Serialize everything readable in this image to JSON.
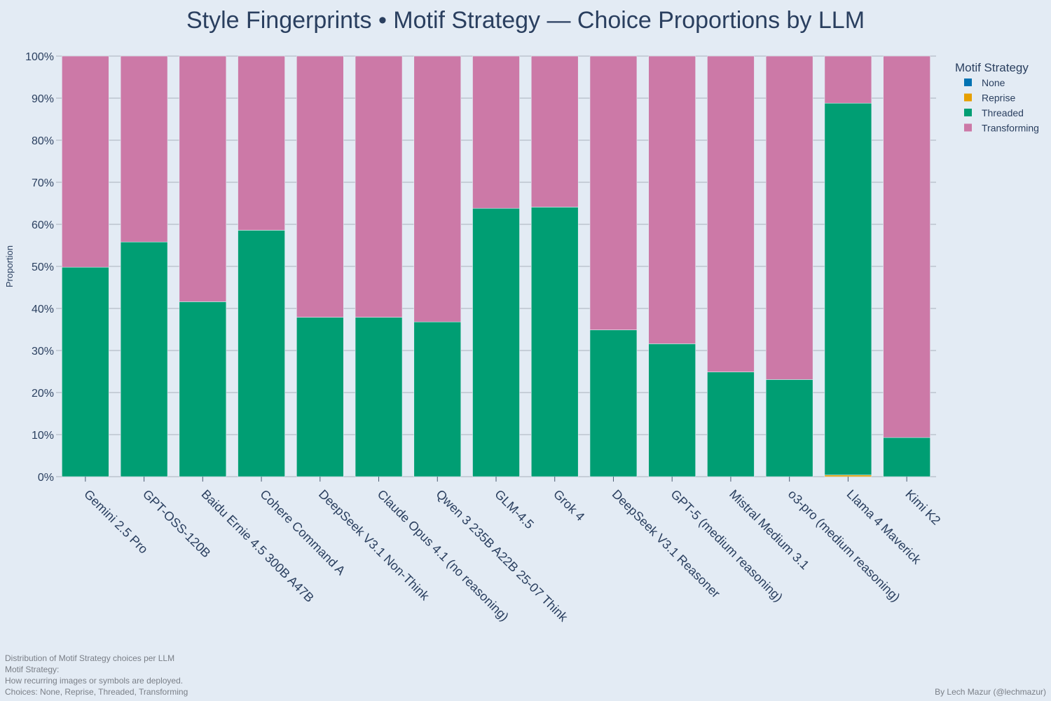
{
  "chart_data": {
    "type": "bar",
    "stacked": true,
    "title": "Style Fingerprints • Motif Strategy — Choice Proportions by LLM",
    "xlabel": "",
    "ylabel": "Proportion",
    "ylim": [
      0,
      1
    ],
    "yticks": [
      0,
      0.1,
      0.2,
      0.3,
      0.4,
      0.5,
      0.6,
      0.7,
      0.8,
      0.9,
      1.0
    ],
    "ytick_labels": [
      "0%",
      "10%",
      "20%",
      "30%",
      "40%",
      "50%",
      "60%",
      "70%",
      "80%",
      "90%",
      "100%"
    ],
    "legend_title": "Motif Strategy",
    "legend_position": "top-right",
    "categories": [
      "Gemini 2.5 Pro",
      "GPT-OSS-120B",
      "Baidu Ernie 4.5 300B A47B",
      "Cohere Command A",
      "DeepSeek V3.1 Non-Think",
      "Claude Opus 4.1 (no reasoning)",
      "Qwen 3 235B A22B 25-07 Think",
      "GLM-4.5",
      "Grok 4",
      "DeepSeek V3.1 Reasoner",
      "GPT-5 (medium reasoning)",
      "Mistral Medium 3.1",
      "o3-pro (medium reasoning)",
      "Llama 4 Maverick",
      "Kimi K2"
    ],
    "series": [
      {
        "name": "None",
        "color": "#0072b2",
        "values": [
          0,
          0,
          0,
          0,
          0,
          0,
          0,
          0,
          0,
          0,
          0,
          0,
          0,
          0,
          0
        ]
      },
      {
        "name": "Reprise",
        "color": "#e69f00",
        "values": [
          0,
          0,
          0,
          0,
          0,
          0,
          0,
          0,
          0,
          0,
          0,
          0,
          0,
          0.004,
          0
        ]
      },
      {
        "name": "Threaded",
        "color": "#009e73",
        "values": [
          0.498,
          0.558,
          0.416,
          0.586,
          0.379,
          0.379,
          0.368,
          0.638,
          0.641,
          0.349,
          0.316,
          0.249,
          0.231,
          0.884,
          0.093
        ]
      },
      {
        "name": "Transforming",
        "color": "#cc79a7",
        "values": [
          0.502,
          0.442,
          0.584,
          0.414,
          0.621,
          0.621,
          0.632,
          0.362,
          0.359,
          0.651,
          0.684,
          0.751,
          0.769,
          0.112,
          0.907
        ]
      }
    ]
  },
  "footer": {
    "notes": [
      "Distribution of Motif Strategy choices per LLM",
      "Motif Strategy:",
      "How recurring images or symbols are deployed.",
      "Choices: None, Reprise, Threaded, Transforming"
    ],
    "credit": "By Lech Mazur (@lechmazur)"
  }
}
